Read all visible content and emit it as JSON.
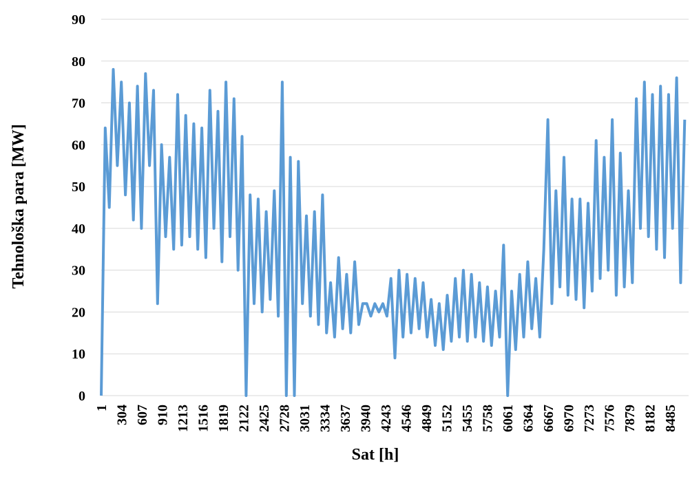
{
  "chart_data": {
    "type": "line",
    "x_label": "Sat [h]",
    "y_label": "Tehnološka para [MW]",
    "xlim": [
      1,
      8760
    ],
    "xticks": [
      1,
      304,
      607,
      910,
      1213,
      1516,
      1819,
      2122,
      2425,
      2728,
      3031,
      3334,
      3637,
      3940,
      4243,
      4546,
      4849,
      5152,
      5455,
      5758,
      6061,
      6364,
      6667,
      6970,
      7273,
      7576,
      7879,
      8182,
      8485
    ],
    "ylim": [
      0,
      90
    ],
    "yticks": [
      0,
      10,
      20,
      30,
      40,
      50,
      60,
      70,
      80,
      90
    ],
    "grid": true,
    "series": [
      {
        "color": "#5b9bd5",
        "x": [
          1,
          61,
          121,
          181,
          241,
          301,
          361,
          421,
          481,
          541,
          601,
          661,
          721,
          781,
          841,
          901,
          961,
          1021,
          1081,
          1141,
          1201,
          1261,
          1321,
          1381,
          1441,
          1501,
          1561,
          1621,
          1681,
          1741,
          1801,
          1861,
          1921,
          1981,
          2041,
          2101,
          2161,
          2221,
          2281,
          2341,
          2401,
          2461,
          2521,
          2581,
          2641,
          2701,
          2761,
          2821,
          2881,
          2941,
          3001,
          3061,
          3121,
          3181,
          3241,
          3301,
          3361,
          3421,
          3481,
          3541,
          3601,
          3661,
          3721,
          3781,
          3841,
          3901,
          3961,
          4021,
          4081,
          4141,
          4201,
          4261,
          4321,
          4381,
          4441,
          4501,
          4561,
          4621,
          4681,
          4741,
          4801,
          4861,
          4921,
          4981,
          5041,
          5101,
          5161,
          5221,
          5281,
          5341,
          5401,
          5461,
          5521,
          5581,
          5641,
          5701,
          5761,
          5821,
          5881,
          5941,
          6001,
          6061,
          6121,
          6181,
          6241,
          6301,
          6361,
          6421,
          6481,
          6541,
          6601,
          6661,
          6721,
          6781,
          6841,
          6901,
          6961,
          7021,
          7081,
          7141,
          7201,
          7261,
          7321,
          7381,
          7441,
          7501,
          7561,
          7621,
          7681,
          7741,
          7801,
          7861,
          7921,
          7981,
          8041,
          8101,
          8161,
          8221,
          8281,
          8341,
          8401,
          8461,
          8521,
          8581,
          8641,
          8701
        ],
        "values": [
          0,
          64,
          45,
          78,
          55,
          75,
          48,
          70,
          42,
          74,
          40,
          77,
          55,
          73,
          22,
          60,
          38,
          57,
          35,
          72,
          36,
          67,
          38,
          65,
          35,
          64,
          33,
          73,
          40,
          68,
          32,
          75,
          38,
          71,
          30,
          62,
          0,
          48,
          22,
          47,
          20,
          44,
          23,
          49,
          19,
          75,
          0,
          57,
          0,
          56,
          22,
          43,
          19,
          44,
          17,
          48,
          15,
          27,
          14,
          33,
          16,
          29,
          15,
          32,
          17,
          22,
          22,
          19,
          22,
          20,
          22,
          19,
          28,
          9,
          30,
          14,
          29,
          15,
          28,
          16,
          27,
          14,
          23,
          12,
          22,
          11,
          24,
          13,
          28,
          14,
          30,
          13,
          29,
          14,
          27,
          13,
          26,
          12,
          25,
          14,
          36,
          0,
          25,
          11,
          29,
          14,
          32,
          16,
          28,
          14,
          35,
          66,
          22,
          49,
          26,
          57,
          24,
          47,
          23,
          47,
          21,
          46,
          25,
          61,
          28,
          57,
          30,
          66,
          24,
          58,
          26,
          49,
          27,
          71,
          40,
          75,
          38,
          72,
          35,
          74,
          33,
          72,
          40,
          76,
          27,
          66
        ]
      }
    ]
  }
}
